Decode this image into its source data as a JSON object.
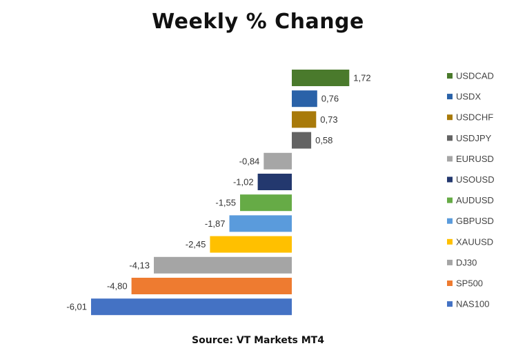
{
  "chart_data": {
    "type": "bar",
    "orientation": "horizontal",
    "title": "Weekly % Change",
    "categories": [
      "USDCAD",
      "USDX",
      "USDCHF",
      "USDJPY",
      "EURUSD",
      "USOUSD",
      "AUDUSD",
      "GBPUSD",
      "XAUUSD",
      "DJ30",
      "SP500",
      "NAS100"
    ],
    "values": [
      1.72,
      0.76,
      0.73,
      0.58,
      -0.84,
      -1.02,
      -1.55,
      -1.87,
      -2.45,
      -4.13,
      -4.8,
      -6.01
    ],
    "value_labels": [
      "1,72",
      "0,76",
      "0,73",
      "0,58",
      "-0,84",
      "-1,02",
      "-1,55",
      "-1,87",
      "-2,45",
      "-4,13",
      "-4,80",
      "-6,01"
    ],
    "colors": [
      "#4a7a2c",
      "#2a62a8",
      "#a87a0a",
      "#636363",
      "#a6a6a6",
      "#23386e",
      "#66ab46",
      "#5a9bdc",
      "#ffc000",
      "#a5a5a5",
      "#ee7b30",
      "#4472c4"
    ],
    "xlim": [
      -6.01,
      1.72
    ],
    "grid": false,
    "legend_position": "right"
  },
  "source": "Source: VT Markets MT4"
}
